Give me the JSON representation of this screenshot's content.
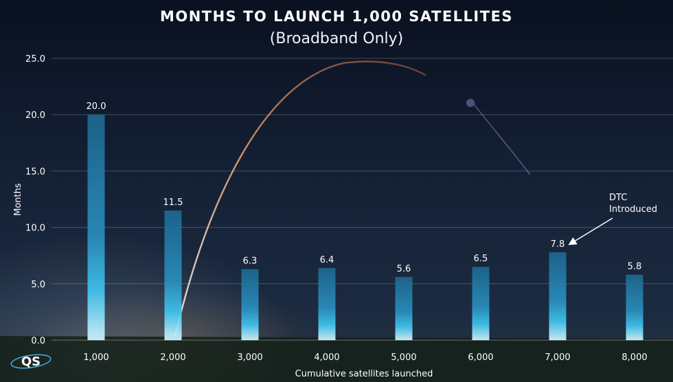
{
  "chart_data": {
    "type": "bar",
    "title": "Months to Launch 1,000 Satellites",
    "subtitle": "(Broadband Only)",
    "categories": [
      "1,000",
      "2,000",
      "3,000",
      "4,000",
      "5,000",
      "6,000",
      "7,000",
      "8,000"
    ],
    "values": [
      20.0,
      11.5,
      6.3,
      6.4,
      5.6,
      6.5,
      7.8,
      5.8
    ],
    "data_labels": [
      "20.0",
      "11.5",
      "6.3",
      "6.4",
      "5.6",
      "6.5",
      "7.8",
      "5.8"
    ],
    "xlabel": "Cumulative satellites launched",
    "ylabel": "Months",
    "ylim": [
      0,
      25
    ],
    "yticks": [
      "0.0",
      "5.0",
      "10.0",
      "15.0",
      "20.0",
      "25.0"
    ],
    "grid": true,
    "annotation": {
      "lines": [
        "DTC",
        "Introduced"
      ],
      "category": "7,000"
    },
    "bar_color": "#1f6f95",
    "bar_highlight_color": "#3ec6f2"
  },
  "logo_text": "QS"
}
